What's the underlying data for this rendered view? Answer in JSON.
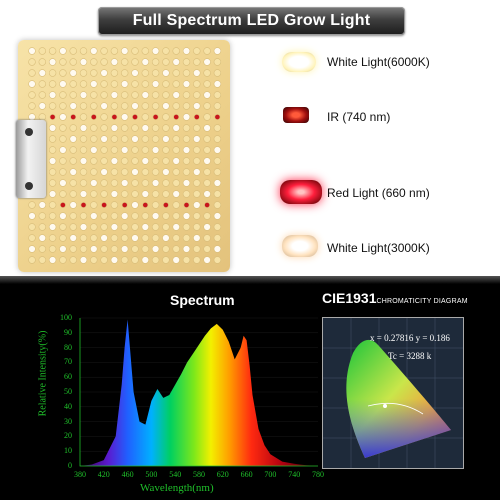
{
  "title": "Full Spectrum LED Grow Light",
  "legend": [
    {
      "label": "White Light(6000K)",
      "color": "#fffbd8"
    },
    {
      "label": "IR (740 nm)",
      "color": "#a10f0f"
    },
    {
      "label": "Red Light (660 nm)",
      "color": "#e3202b"
    },
    {
      "label": "White Light(3000K)",
      "color": "#ffe3c0"
    }
  ],
  "spectrum": {
    "title": "Spectrum",
    "ylabel": "Relative Intensity(%)",
    "xlabel": "Wavelength(nm)",
    "yticks": [
      "100",
      "90",
      "80",
      "70",
      "60",
      "50",
      "40",
      "30",
      "20",
      "10",
      "0"
    ],
    "xticks": [
      "380",
      "420",
      "460",
      "500",
      "540",
      "580",
      "620",
      "660",
      "700",
      "740",
      "780"
    ]
  },
  "cie": {
    "title": "CIE1931",
    "subtitle": "CHROMATICITY DIAGRAM",
    "coords": "x = 0.27816 y = 0.186",
    "tc": "Tc = 3288 k"
  },
  "chart_data": {
    "type": "area",
    "title": "Spectrum",
    "xlabel": "Wavelength(nm)",
    "ylabel": "Relative Intensity(%)",
    "xlim": [
      380,
      780
    ],
    "ylim": [
      0,
      100
    ],
    "x": [
      380,
      400,
      420,
      440,
      450,
      455,
      460,
      470,
      480,
      490,
      500,
      510,
      520,
      530,
      540,
      550,
      560,
      570,
      580,
      590,
      600,
      610,
      620,
      630,
      640,
      650,
      655,
      660,
      665,
      670,
      680,
      690,
      700,
      720,
      740,
      760,
      780
    ],
    "y": [
      0,
      1,
      4,
      20,
      55,
      80,
      99,
      50,
      30,
      28,
      44,
      52,
      46,
      48,
      55,
      62,
      70,
      76,
      82,
      88,
      93,
      96,
      92,
      84,
      72,
      80,
      88,
      85,
      68,
      48,
      25,
      14,
      8,
      3,
      1.5,
      0.5,
      0
    ]
  }
}
